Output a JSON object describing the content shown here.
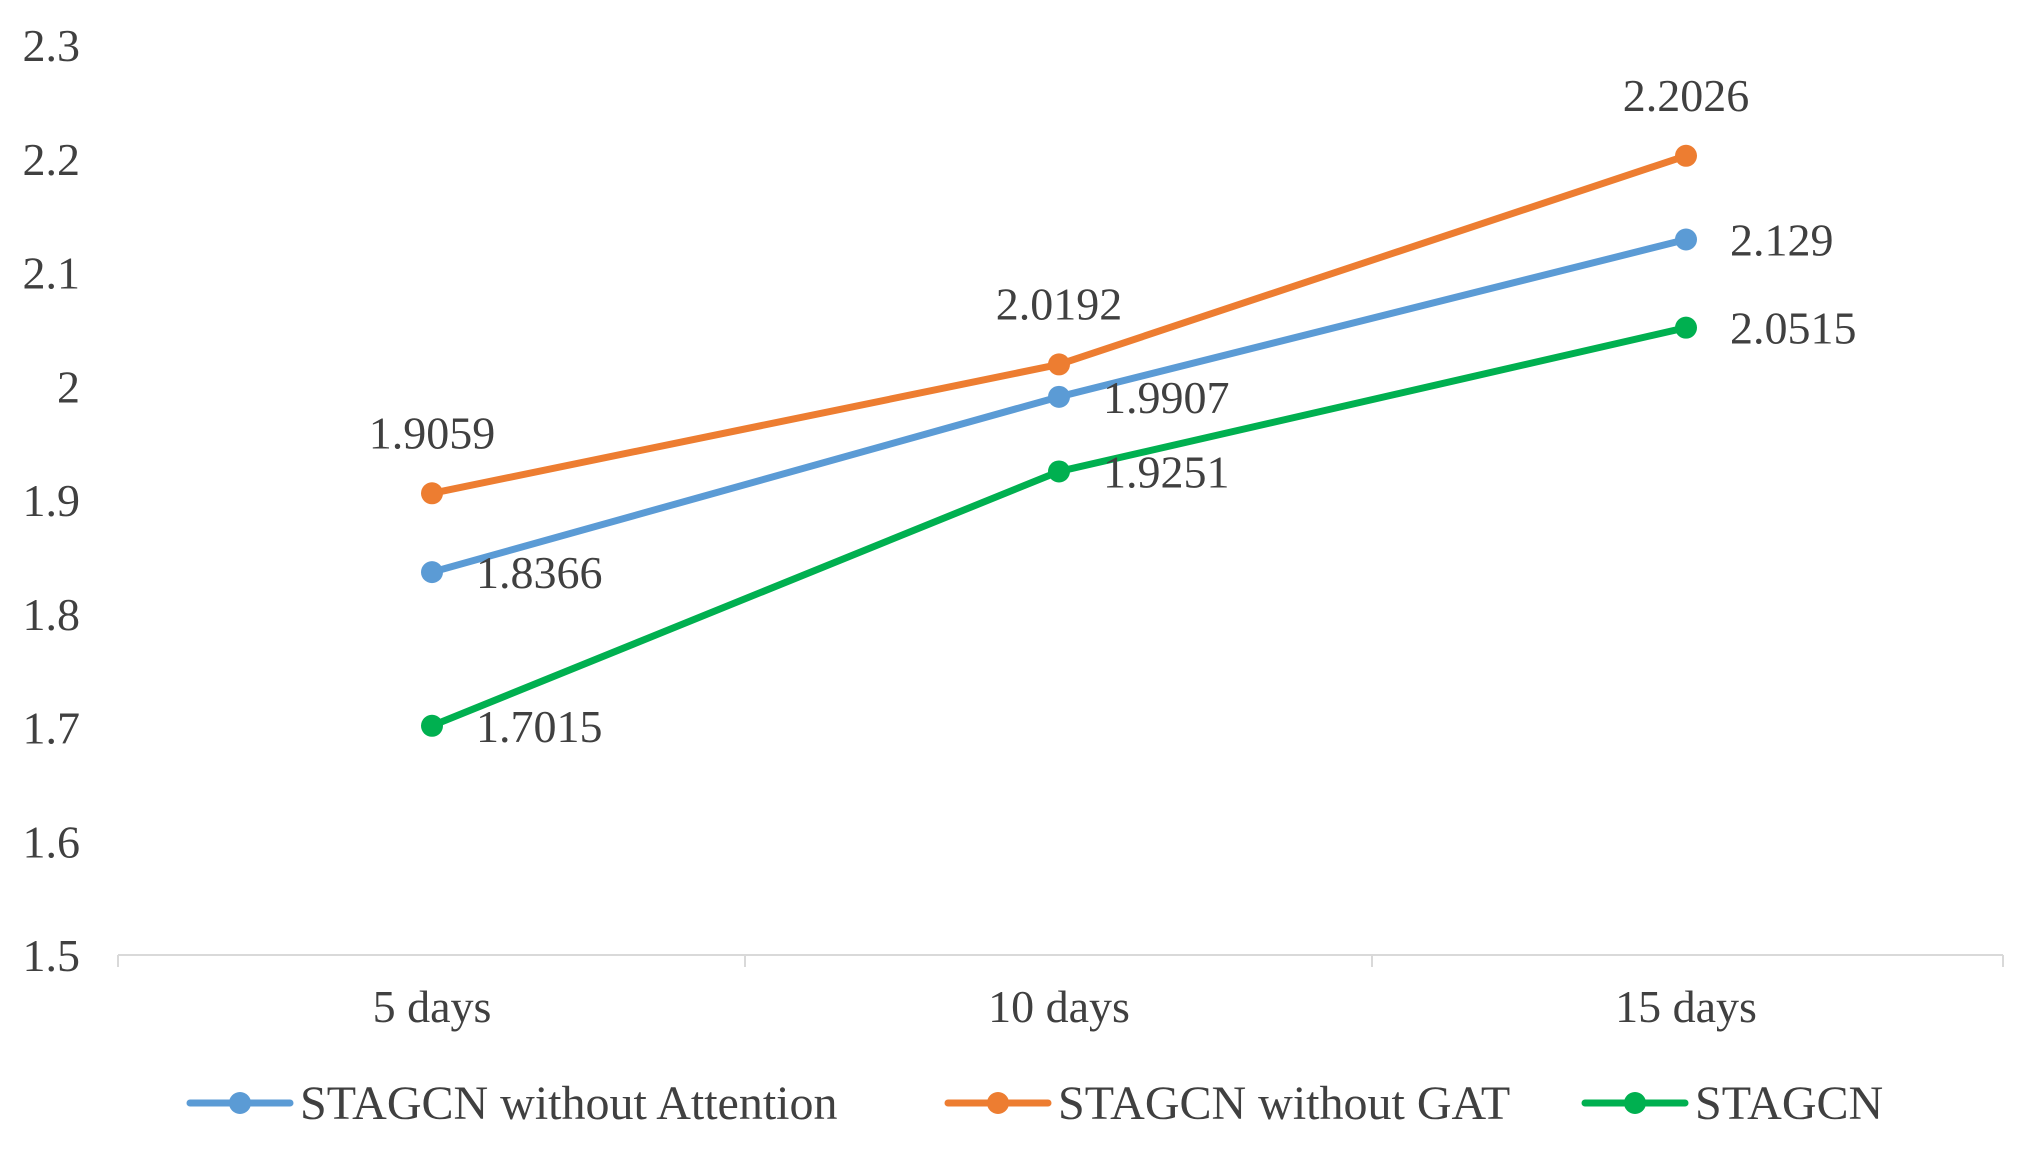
{
  "chart_data": {
    "type": "line",
    "title": "",
    "xlabel": "",
    "ylabel": "",
    "categories": [
      "5 days",
      "10 days",
      "15 days"
    ],
    "ylim": [
      1.5,
      2.3
    ],
    "yticks": [
      "1.5",
      "1.6",
      "1.7",
      "1.8",
      "1.9",
      "2",
      "2.1",
      "2.2",
      "2.3"
    ],
    "ytick_values": [
      1.5,
      1.6,
      1.7,
      1.8,
      1.9,
      2.0,
      2.1,
      2.2,
      2.3
    ],
    "grid": false,
    "legend_position": "bottom",
    "series": [
      {
        "name": "STAGCN without Attention",
        "color": "#5b9bd5",
        "values": [
          1.8366,
          1.9907,
          2.129
        ],
        "labels": [
          "1.8366",
          "1.9907",
          "2.129"
        ],
        "label_placement": [
          "right",
          "right",
          "right"
        ]
      },
      {
        "name": "STAGCN without GAT",
        "color": "#ed7d31",
        "values": [
          1.9059,
          2.0192,
          2.2026
        ],
        "labels": [
          "1.9059",
          "2.0192",
          "2.2026"
        ],
        "label_placement": [
          "above",
          "above",
          "above"
        ]
      },
      {
        "name": "STAGCN",
        "color": "#00b050",
        "values": [
          1.7015,
          1.9251,
          2.0515
        ],
        "labels": [
          "1.7015",
          "1.9251",
          "2.0515"
        ],
        "label_placement": [
          "right",
          "right",
          "right"
        ]
      }
    ]
  }
}
